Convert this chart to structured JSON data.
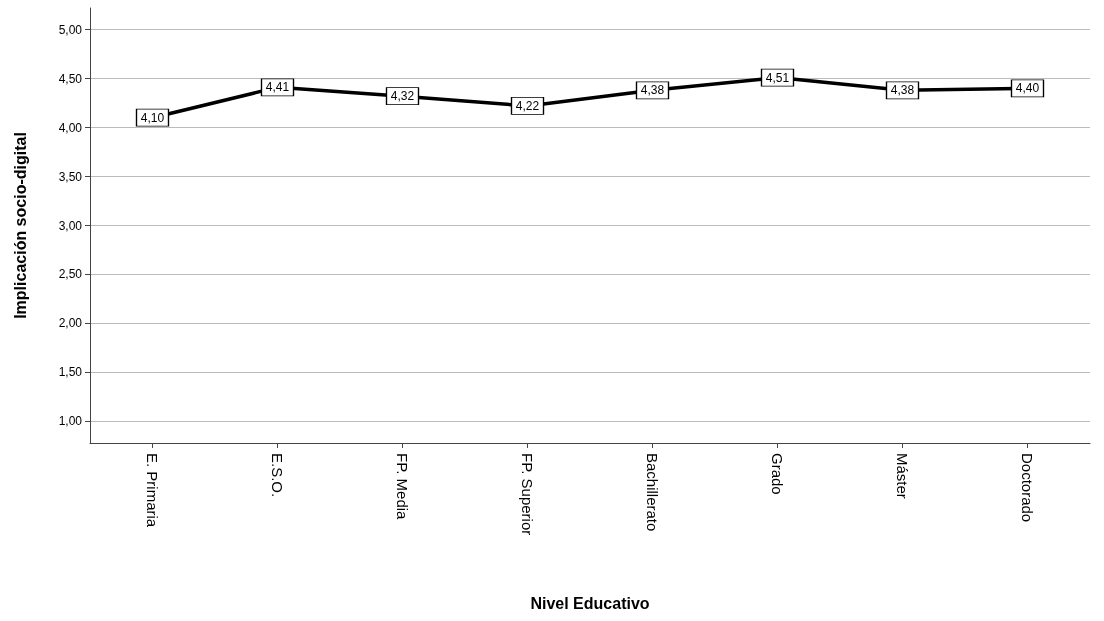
{
  "chart_data": {
    "type": "line",
    "xlabel": "Nivel Educativo",
    "ylabel": "Implicación socio-digital",
    "categories": [
      "E. Primaria",
      "E.S.O.",
      "FP. Media",
      "FP. Superior",
      "Bachillerato",
      "Grado",
      "Máster",
      "Doctorado"
    ],
    "series": [
      {
        "color": "#000000",
        "values": [
          4.1,
          4.41,
          4.32,
          4.22,
          4.38,
          4.51,
          4.38,
          4.4
        ],
        "value_labels": [
          "4,10",
          "4,41",
          "4,32",
          "4,22",
          "4,38",
          "4,51",
          "4,38",
          "4,40"
        ]
      }
    ],
    "ylim": [
      0.78,
      5.22
    ],
    "yticks": [
      {
        "value": 1,
        "label": "1,00"
      },
      {
        "value": 1.5,
        "label": "1,50"
      },
      {
        "value": 2,
        "label": "2,00"
      },
      {
        "value": 2.5,
        "label": "2,50"
      },
      {
        "value": 3,
        "label": "3,00"
      },
      {
        "value": 3.5,
        "label": "3,50"
      },
      {
        "value": 4,
        "label": "4,00"
      },
      {
        "value": 4.5,
        "label": "4,50"
      },
      {
        "value": 5,
        "label": "5,00"
      }
    ],
    "grid": "y",
    "line_style": "solid",
    "marker": "square"
  }
}
